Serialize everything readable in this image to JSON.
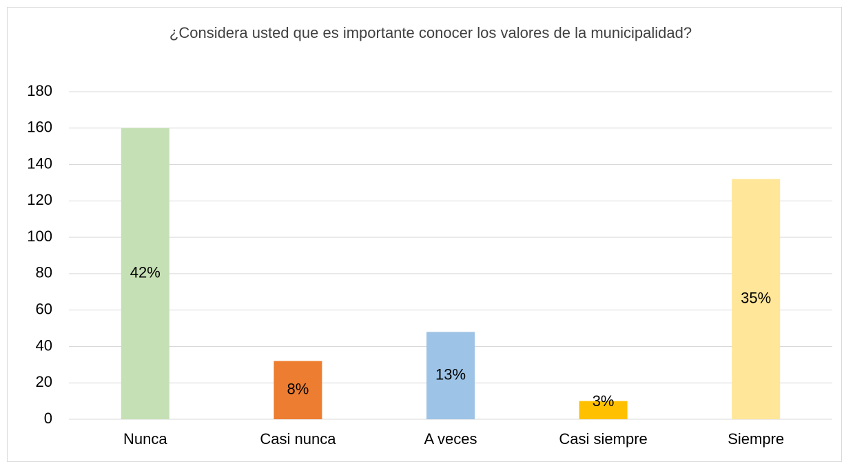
{
  "chart_data": {
    "type": "bar",
    "title": "¿Considera usted que es importante conocer los valores de la municipalidad?",
    "categories": [
      "Nunca",
      "Casi nunca",
      "A veces",
      "Casi siempre",
      "Siempre"
    ],
    "values": [
      160,
      32,
      48,
      10,
      132
    ],
    "value_labels": [
      "42%",
      "8%",
      "13%",
      "3%",
      "35%"
    ],
    "colors": [
      "#c5e0b4",
      "#ed7d31",
      "#9dc3e6",
      "#ffc000",
      "#ffe699"
    ],
    "ylim": [
      0,
      180
    ],
    "yticks": [
      0,
      20,
      40,
      60,
      80,
      100,
      120,
      140,
      160,
      180
    ],
    "grid": true
  }
}
